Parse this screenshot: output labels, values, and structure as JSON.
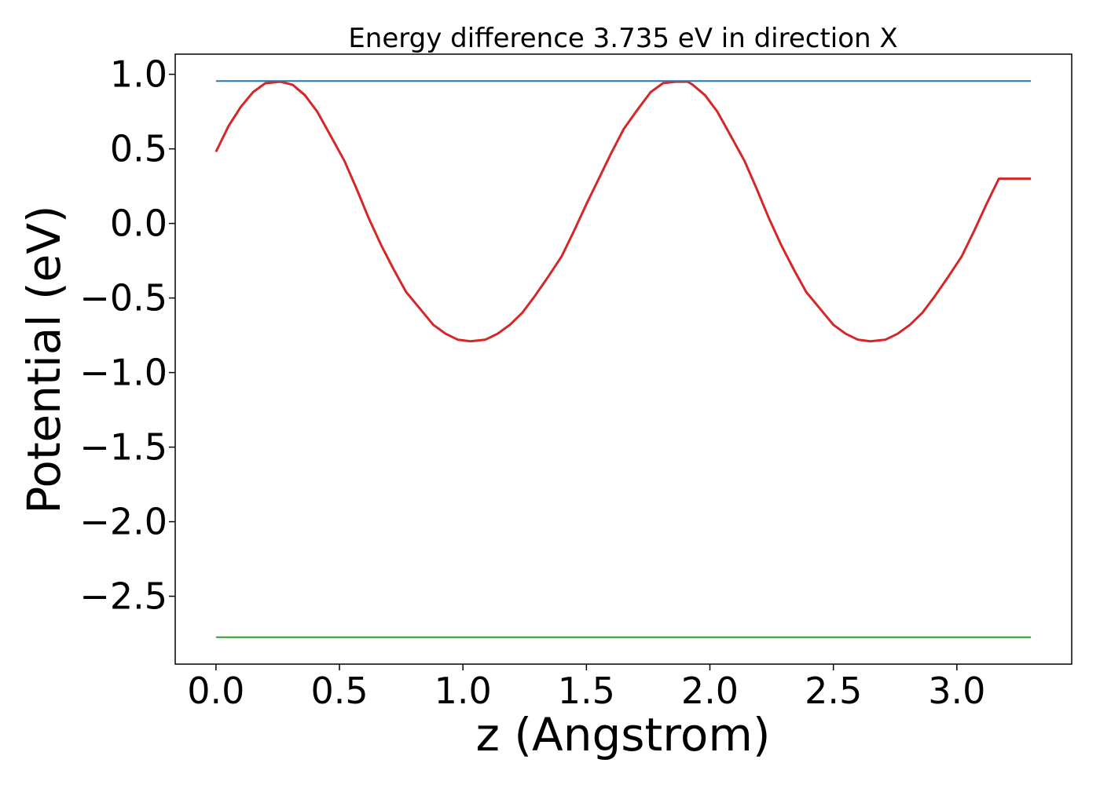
{
  "chart_data": {
    "type": "line",
    "title": "Energy difference 3.735 eV in direction X",
    "xlabel": "z (Angstrom)",
    "ylabel": "Potential (eV)",
    "xlim": [
      -0.165,
      3.465
    ],
    "ylim": [
      -2.955,
      1.135
    ],
    "xticks": [
      0.0,
      0.5,
      1.0,
      1.5,
      2.0,
      2.5,
      3.0
    ],
    "xtick_labels": [
      "0.0",
      "0.5",
      "1.0",
      "1.5",
      "2.0",
      "2.5",
      "3.0"
    ],
    "yticks": [
      1.0,
      0.5,
      0.0,
      -0.5,
      -1.0,
      -1.5,
      -2.0,
      -2.5
    ],
    "ytick_labels": [
      "1.0",
      "0.5",
      "0.0",
      "−0.5",
      "−1.0",
      "−1.5",
      "−2.0",
      "−2.5"
    ],
    "grid": false,
    "series": [
      {
        "color": "#d62728",
        "x": [
          0.0,
          0.05,
          0.1,
          0.15,
          0.2,
          0.26,
          0.31,
          0.36,
          0.41,
          0.46,
          0.52,
          0.57,
          0.62,
          0.67,
          0.72,
          0.77,
          0.83,
          0.88,
          0.93,
          0.98,
          1.03,
          1.09,
          1.14,
          1.19,
          1.24,
          1.29,
          1.34,
          1.4,
          1.45,
          1.5,
          1.55,
          1.6,
          1.65,
          1.71,
          1.76,
          1.81,
          1.86,
          1.91,
          1.93,
          1.98,
          2.03,
          2.08,
          2.14,
          2.19,
          2.24,
          2.29,
          2.34,
          2.39,
          2.45,
          2.5,
          2.55,
          2.6,
          2.65,
          2.71,
          2.76,
          2.81,
          2.86,
          2.91,
          2.96,
          3.02,
          3.07,
          3.12,
          3.17,
          3.22,
          3.27,
          3.3
        ],
        "y": [
          0.48,
          0.65,
          0.78,
          0.88,
          0.94,
          0.95,
          0.93,
          0.86,
          0.75,
          0.6,
          0.42,
          0.23,
          0.03,
          -0.15,
          -0.31,
          -0.46,
          -0.58,
          -0.68,
          -0.74,
          -0.78,
          -0.79,
          -0.78,
          -0.74,
          -0.68,
          -0.6,
          -0.49,
          -0.37,
          -0.22,
          -0.05,
          0.13,
          0.3,
          0.47,
          0.63,
          0.77,
          0.88,
          0.94,
          0.95,
          0.95,
          0.93,
          0.86,
          0.75,
          0.6,
          0.42,
          0.23,
          0.03,
          -0.15,
          -0.31,
          -0.46,
          -0.58,
          -0.68,
          -0.74,
          -0.78,
          -0.79,
          -0.78,
          -0.74,
          -0.68,
          -0.6,
          -0.49,
          -0.37,
          -0.22,
          -0.05,
          0.13,
          0.3,
          0.3,
          0.3,
          0.3
        ]
      },
      {
        "color": "#1f77b4",
        "x": [
          0.0,
          3.3
        ],
        "y": [
          0.955,
          0.955
        ]
      },
      {
        "color": "#2ca02c",
        "x": [
          0.0,
          3.3
        ],
        "y": [
          -2.775,
          -2.775
        ]
      }
    ]
  }
}
